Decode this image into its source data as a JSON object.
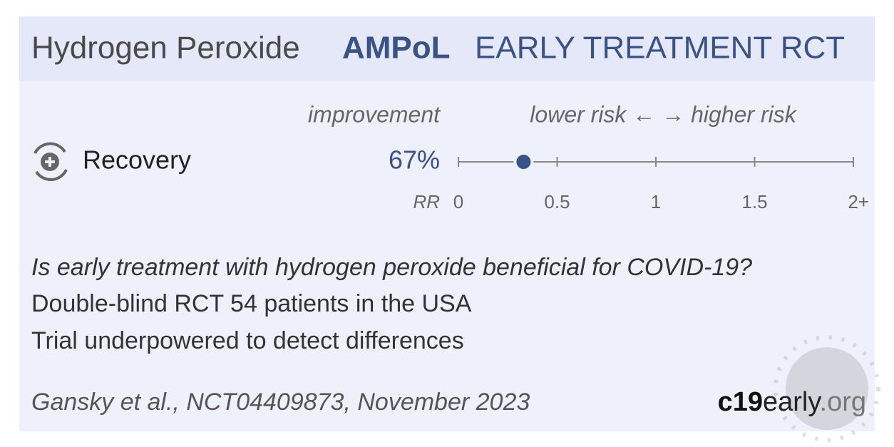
{
  "header": {
    "drug": "Hydrogen Peroxide",
    "trial": "AMPoL",
    "kind": "EARLY TREATMENT RCT"
  },
  "plot": {
    "improvement_heading": "improvement",
    "risk_heading": "lower risk ← → higher risk",
    "outcome": "Recovery",
    "improvement": "67%",
    "axis_label": "RR",
    "rr": 0.33,
    "xlim": [
      0,
      2
    ],
    "xticks": [
      0,
      0.5,
      1,
      1.5,
      {
        "value": 2,
        "label": "2+"
      }
    ]
  },
  "summary": [
    "Is early treatment with hydrogen peroxide beneficial for COVID-19?",
    "Double-blind RCT 54 patients in the USA",
    "Trial underpowered to detect differences"
  ],
  "citation": "Gansky et al., NCT04409873, November 2023",
  "brand": {
    "first": "c19",
    "second": "early",
    "third": ".org"
  }
}
